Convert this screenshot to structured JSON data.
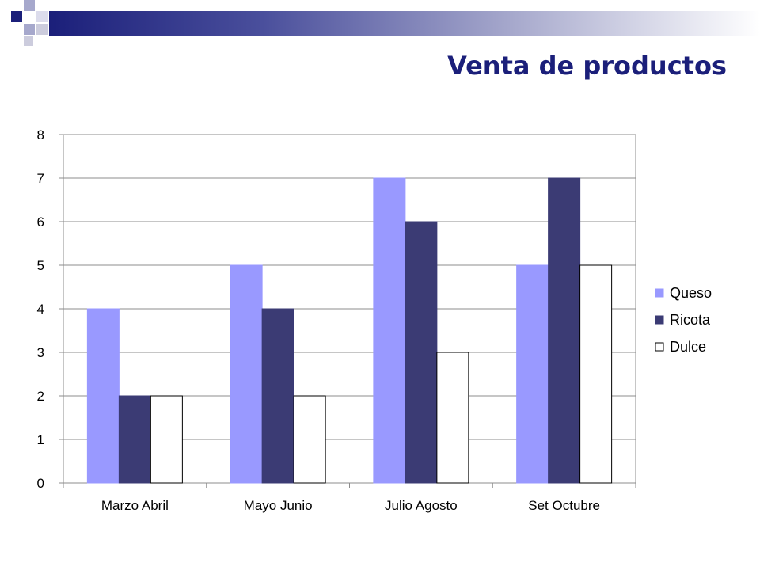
{
  "title": "Venta de productos",
  "colors": {
    "title": "#1b1f7a",
    "Queso": "#9999ff",
    "Ricota": "#3b3b74",
    "Dulce": "#ffffff",
    "grid": "#8c8c8c"
  },
  "chart_data": {
    "type": "bar",
    "categories": [
      "Marzo Abril",
      "Mayo Junio",
      "Julio Agosto",
      "Set Octubre"
    ],
    "series": [
      {
        "name": "Queso",
        "values": [
          4,
          5,
          7,
          5
        ]
      },
      {
        "name": "Ricota",
        "values": [
          2,
          4,
          6,
          7
        ]
      },
      {
        "name": "Dulce",
        "values": [
          2,
          2,
          3,
          5
        ]
      }
    ],
    "ylim": [
      0,
      8
    ],
    "yticks": [
      0,
      1,
      2,
      3,
      4,
      5,
      6,
      7,
      8
    ],
    "grid": true,
    "legend": "right"
  }
}
